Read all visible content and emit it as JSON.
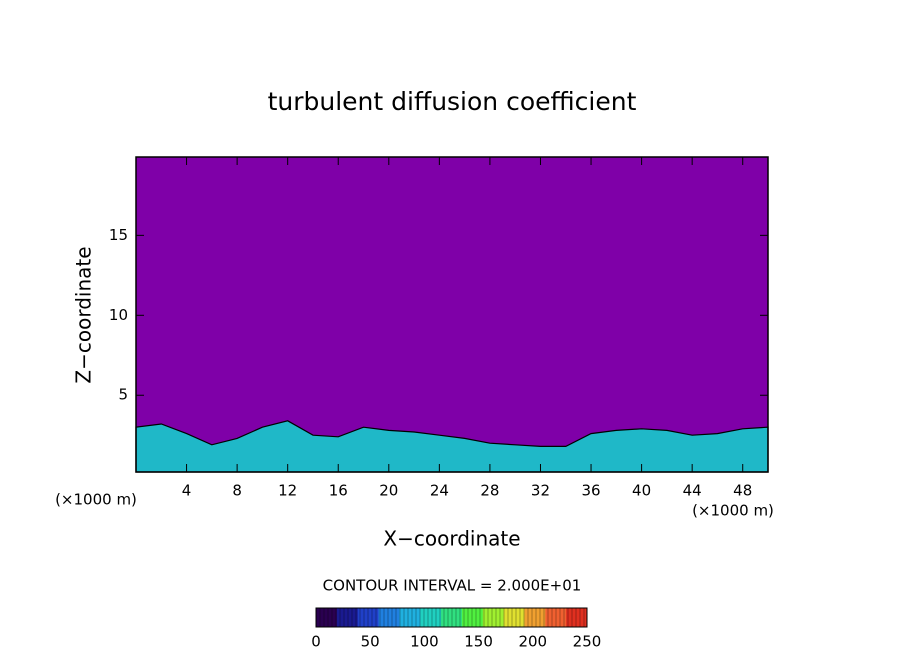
{
  "chart_data": {
    "type": "contour",
    "title": "turbulent diffusion coefficient",
    "x_label": "X−coordinate",
    "y_label": "Z−coordinate",
    "x_unit_label": "(×1000 m)",
    "background_color": "#7f00a8",
    "xlim": [
      0,
      50
    ],
    "xticks": [
      4,
      8,
      12,
      16,
      20,
      24,
      28,
      32,
      36,
      40,
      44,
      48
    ],
    "ylim": [
      0.2,
      19.9
    ],
    "yticks": [
      5,
      10,
      15
    ],
    "series": [
      {
        "color": "#1fb8c8",
        "x": [
          0,
          2,
          4,
          6,
          8,
          10,
          12,
          14,
          16,
          18,
          20,
          22,
          24,
          26,
          28,
          30,
          32,
          34,
          36,
          38,
          40,
          42,
          44,
          46,
          48,
          50
        ],
        "values": [
          3.0,
          3.2,
          2.6,
          1.9,
          2.3,
          3.0,
          3.4,
          2.5,
          2.4,
          3.0,
          2.8,
          2.7,
          2.5,
          2.3,
          2.0,
          1.9,
          1.8,
          1.8,
          2.6,
          2.8,
          2.9,
          2.8,
          2.5,
          2.6,
          2.9,
          3.0
        ]
      }
    ],
    "contour_interval": "CONTOUR INTERVAL = 2.000E+01",
    "colorbar": {
      "lim": [
        0,
        250
      ],
      "ticks": [
        0,
        50,
        100,
        150,
        200,
        250
      ],
      "colors": [
        "#2a0050",
        "#1a1a90",
        "#2040c8",
        "#2080e0",
        "#20b0e0",
        "#20d0c0",
        "#30e080",
        "#50f040",
        "#a0f030",
        "#e0e030",
        "#f0a030",
        "#f06030",
        "#e03020"
      ]
    }
  }
}
